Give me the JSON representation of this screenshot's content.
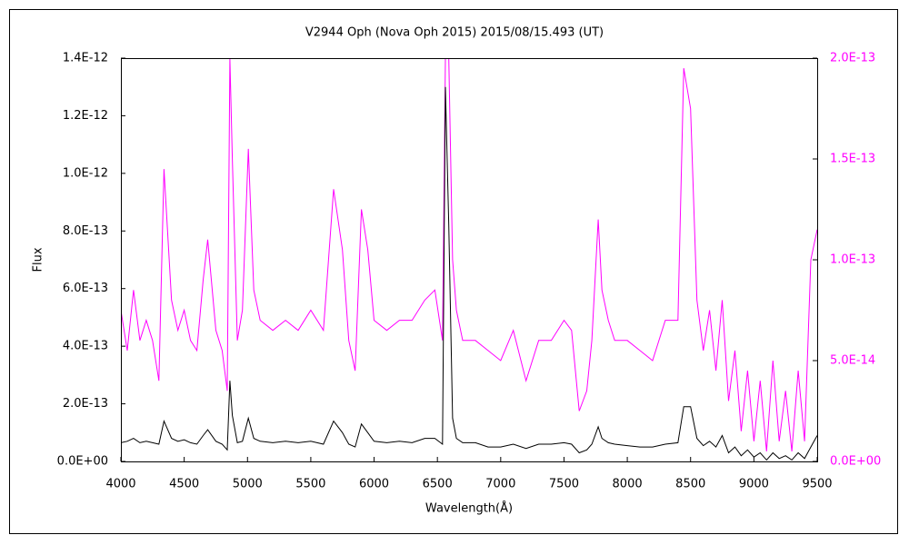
{
  "chart_data": {
    "type": "line",
    "title": "V2944 Oph (Nova Oph 2015)   2015/08/15.493 (UT)",
    "xlabel": "Wavelength(Å)",
    "ylabel": "Flux",
    "x": [
      4000,
      4050,
      4100,
      4150,
      4200,
      4250,
      4300,
      4340,
      4400,
      4450,
      4500,
      4550,
      4600,
      4650,
      4686,
      4750,
      4800,
      4840,
      4861,
      4880,
      4920,
      4960,
      5007,
      5050,
      5100,
      5200,
      5300,
      5400,
      5500,
      5600,
      5680,
      5750,
      5800,
      5850,
      5900,
      5950,
      6000,
      6100,
      6200,
      6300,
      6400,
      6480,
      6540,
      6563,
      6590,
      6620,
      6650,
      6700,
      6800,
      6900,
      7000,
      7100,
      7200,
      7300,
      7400,
      7500,
      7560,
      7620,
      7680,
      7720,
      7770,
      7800,
      7850,
      7900,
      8000,
      8100,
      8200,
      8300,
      8400,
      8446,
      8500,
      8550,
      8600,
      8650,
      8700,
      8750,
      8800,
      8850,
      8900,
      8950,
      9000,
      9050,
      9100,
      9150,
      9200,
      9250,
      9300,
      9350,
      9400,
      9450,
      9500
    ],
    "series": [
      {
        "color": "#ff00ff",
        "axis": "y2",
        "values": [
          7.5e-14,
          5.5e-14,
          8.5e-14,
          6e-14,
          7e-14,
          6e-14,
          4e-14,
          1.45e-13,
          8e-14,
          6.5e-14,
          7.5e-14,
          6e-14,
          5.5e-14,
          9e-14,
          1.1e-13,
          6.5e-14,
          5.5e-14,
          3.5e-14,
          2e-13,
          1.5e-13,
          6e-14,
          7.5e-14,
          1.55e-13,
          8.5e-14,
          7e-14,
          6.5e-14,
          7e-14,
          6.5e-14,
          7.5e-14,
          6.5e-14,
          1.35e-13,
          1.05e-13,
          6e-14,
          4.5e-14,
          1.25e-13,
          1.05e-13,
          7e-14,
          6.5e-14,
          7e-14,
          7e-14,
          8e-14,
          8.5e-14,
          6e-14,
          2e-13,
          2e-13,
          1e-13,
          7.5e-14,
          6e-14,
          6e-14,
          5.5e-14,
          5e-14,
          6.5e-14,
          4e-14,
          6e-14,
          6e-14,
          7e-14,
          6.5e-14,
          2.5e-14,
          3.5e-14,
          6e-14,
          1.2e-13,
          8.5e-14,
          7e-14,
          6e-14,
          6e-14,
          5.5e-14,
          5e-14,
          7e-14,
          7e-14,
          1.95e-13,
          1.75e-13,
          8e-14,
          5.5e-14,
          7.5e-14,
          4.5e-14,
          8e-14,
          3e-14,
          5.5e-14,
          1.5e-14,
          4.5e-14,
          1e-14,
          4e-14,
          5e-15,
          5e-14,
          1e-14,
          3.5e-14,
          5e-15,
          4.5e-14,
          1e-14,
          1e-13,
          1.15e-13
        ]
      },
      {
        "color": "#000000",
        "axis": "y",
        "values": [
          6.5e-14,
          7e-14,
          8e-14,
          6.5e-14,
          7e-14,
          6.5e-14,
          6e-14,
          1.4e-13,
          8e-14,
          7e-14,
          7.5e-14,
          6.5e-14,
          6e-14,
          9e-14,
          1.1e-13,
          7e-14,
          6e-14,
          4e-14,
          2.8e-13,
          1.6e-13,
          6.5e-14,
          7e-14,
          1.5e-13,
          8e-14,
          7e-14,
          6.5e-14,
          7e-14,
          6.5e-14,
          7e-14,
          6e-14,
          1.4e-13,
          1e-13,
          6e-14,
          5e-14,
          1.3e-13,
          1e-13,
          7e-14,
          6.5e-14,
          7e-14,
          6.5e-14,
          8e-14,
          8e-14,
          6e-14,
          1.3e-12,
          8.2e-13,
          1.5e-13,
          8e-14,
          6.5e-14,
          6.5e-14,
          5e-14,
          5e-14,
          6e-14,
          4.5e-14,
          6e-14,
          6e-14,
          6.5e-14,
          6e-14,
          3e-14,
          4e-14,
          6e-14,
          1.2e-13,
          8e-14,
          6.5e-14,
          6e-14,
          5.5e-14,
          5e-14,
          5e-14,
          6e-14,
          6.5e-14,
          1.9e-13,
          1.9e-13,
          8e-14,
          5.5e-14,
          7e-14,
          5e-14,
          9e-14,
          3e-14,
          5e-14,
          2e-14,
          4e-14,
          1.5e-14,
          3e-14,
          5e-15,
          3e-14,
          1e-14,
          2e-14,
          5e-15,
          3e-14,
          1e-14,
          5e-14,
          9e-14
        ]
      }
    ],
    "xlim": [
      4000,
      9500
    ],
    "xticks": [
      4000,
      4500,
      5000,
      5500,
      6000,
      6500,
      7000,
      7500,
      8000,
      8500,
      9000,
      9500
    ],
    "ylim": [
      0,
      1.4e-12
    ],
    "yticks": [
      {
        "value": 0,
        "label": "0.0E+00"
      },
      {
        "value": 2e-13,
        "label": "2.0E-13"
      },
      {
        "value": 4e-13,
        "label": "4.0E-13"
      },
      {
        "value": 6e-13,
        "label": "6.0E-13"
      },
      {
        "value": 8e-13,
        "label": "8.0E-13"
      },
      {
        "value": 1e-12,
        "label": "1.0E-12"
      },
      {
        "value": 1.2e-12,
        "label": "1.2E-12"
      },
      {
        "value": 1.4e-12,
        "label": "1.4E-12"
      }
    ],
    "y2lim": [
      0,
      2e-13
    ],
    "y2ticks": [
      {
        "value": 0,
        "label": "0.0E+00"
      },
      {
        "value": 5e-14,
        "label": "5.0E-14"
      },
      {
        "value": 1e-13,
        "label": "1.0E-13"
      },
      {
        "value": 1.5e-13,
        "label": "1.5E-13"
      },
      {
        "value": 2e-13,
        "label": "2.0E-13"
      }
    ],
    "y2color": "#ff00ff"
  }
}
